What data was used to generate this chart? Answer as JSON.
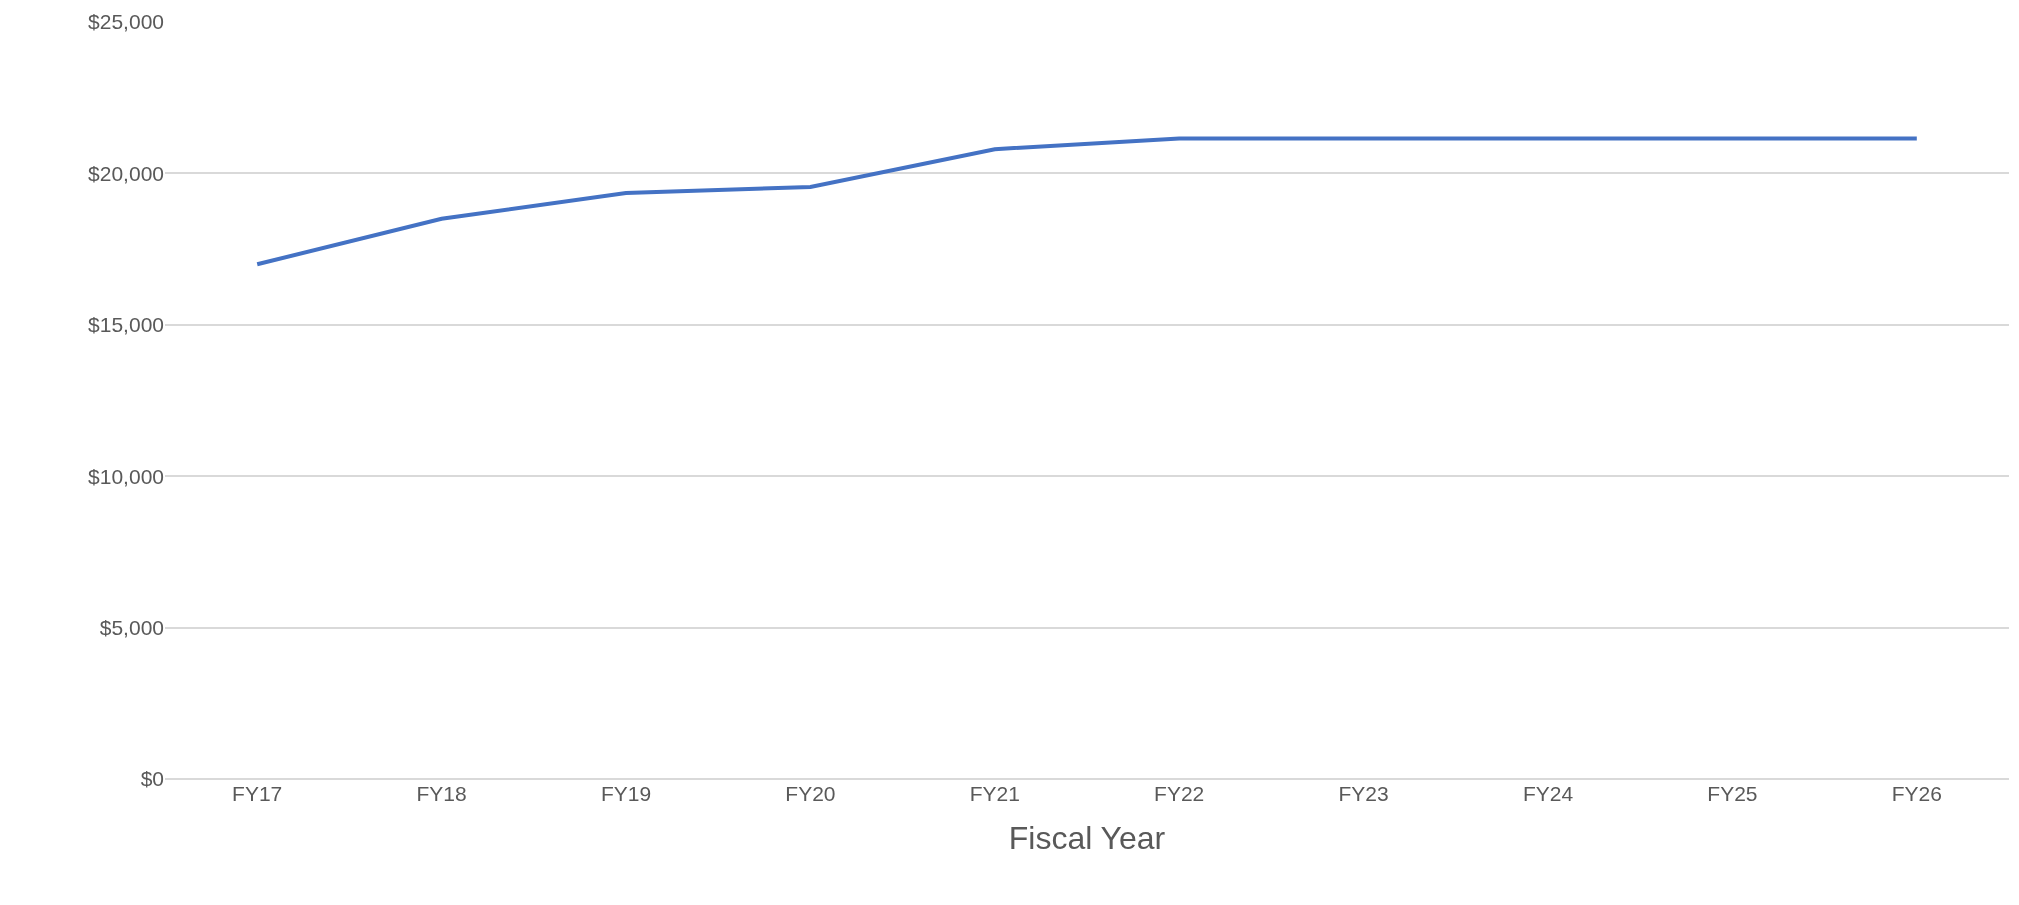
{
  "chart_data": {
    "type": "line",
    "xlabel": "Fiscal Year",
    "categories": [
      "FY17",
      "FY18",
      "FY19",
      "FY20",
      "FY21",
      "FY22",
      "FY23",
      "FY24",
      "FY25",
      "FY26"
    ],
    "series": [
      {
        "color": "#4472c4",
        "values": [
          17000,
          18500,
          19350,
          19550,
          20800,
          21150,
          21150,
          21150,
          21150,
          21150
        ]
      }
    ],
    "ylim": [
      0,
      25000
    ],
    "yticks": [
      {
        "value": 0,
        "label": "$0"
      },
      {
        "value": 5000,
        "label": "$5,000"
      },
      {
        "value": 10000,
        "label": "$10,000"
      },
      {
        "value": 15000,
        "label": "$15,000"
      },
      {
        "value": 20000,
        "label": "$20,000"
      },
      {
        "value": 25000,
        "label": "$25,000"
      }
    ],
    "grid": "y",
    "marker": "none",
    "line_style": "solid"
  }
}
